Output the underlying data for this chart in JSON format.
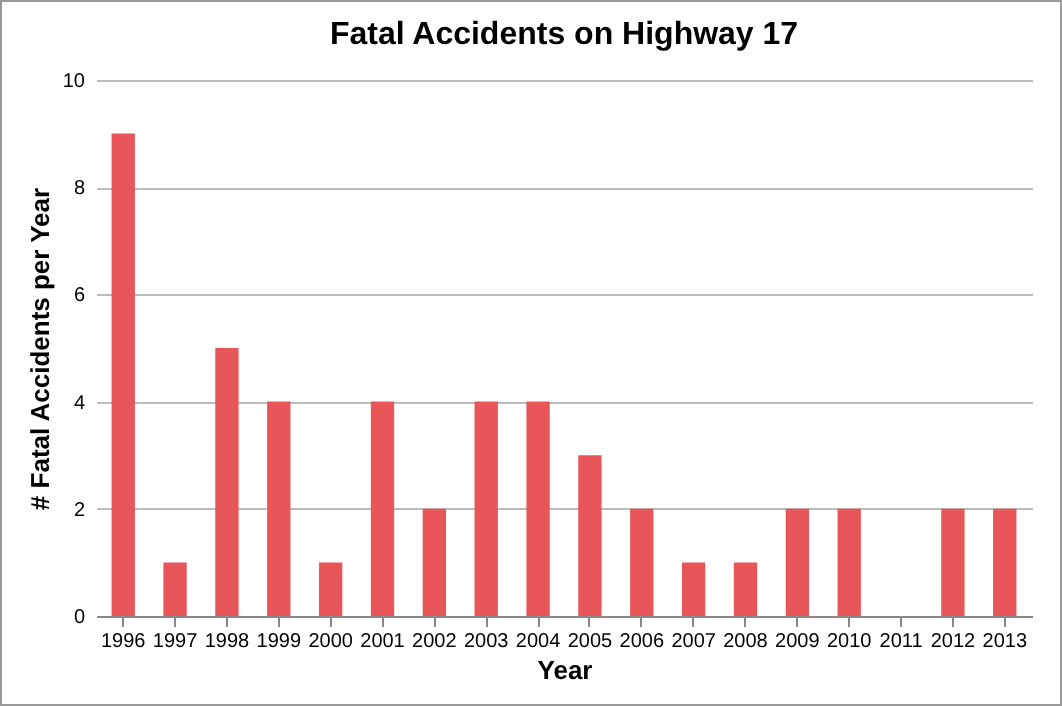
{
  "chart_data": {
    "type": "bar",
    "title": "Fatal Accidents on Highway 17",
    "xlabel": "Year",
    "ylabel": "# Fatal Accidents per Year",
    "categories": [
      "1996",
      "1997",
      "1998",
      "1999",
      "2000",
      "2001",
      "2002",
      "2003",
      "2004",
      "2005",
      "2006",
      "2007",
      "2008",
      "2009",
      "2010",
      "2011",
      "2012",
      "2013"
    ],
    "values": [
      9,
      1,
      5,
      4,
      1,
      4,
      2,
      4,
      4,
      3,
      2,
      1,
      1,
      2,
      2,
      0,
      2,
      2
    ],
    "color": "#e8565a",
    "ylim": [
      0,
      10
    ],
    "yticks": [
      0,
      2,
      4,
      6,
      8,
      10
    ],
    "grid": "y"
  }
}
